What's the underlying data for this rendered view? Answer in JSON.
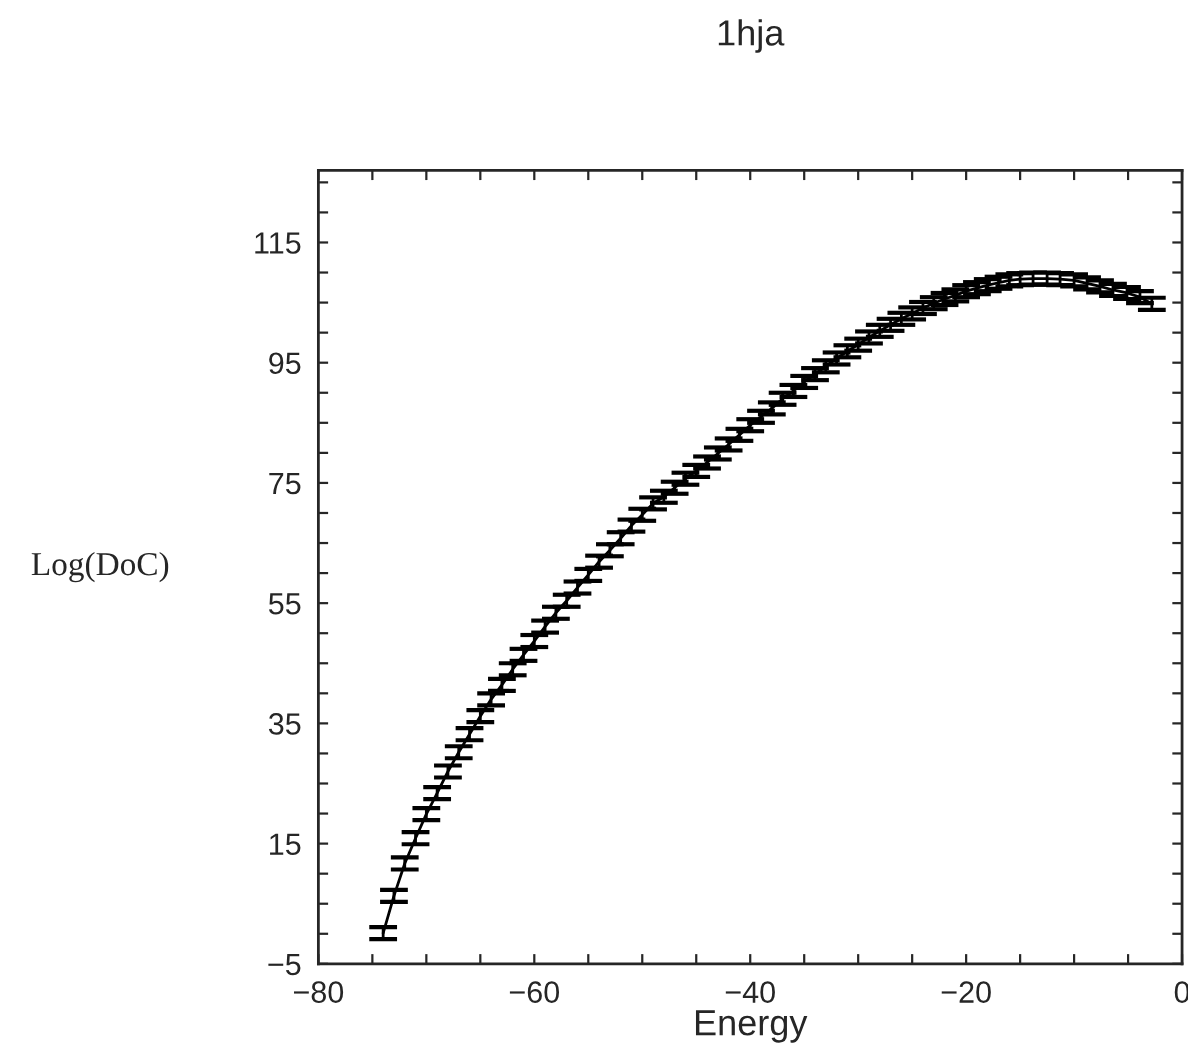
{
  "chart_data": {
    "type": "line",
    "title": "1hja",
    "xlabel": "Energy",
    "ylabel": "Log(DoC)",
    "x": [
      -74,
      -73,
      -72,
      -71,
      -70,
      -69,
      -68,
      -67,
      -66,
      -65,
      -64,
      -63,
      -62,
      -61,
      -60,
      -59,
      -58,
      -57,
      -56,
      -55,
      -54,
      -53,
      -52,
      -51,
      -50,
      -49,
      -48,
      -47,
      -46,
      -45,
      -44,
      -43,
      -42,
      -41,
      -40,
      -39,
      -38,
      -37,
      -36,
      -35,
      -34,
      -33,
      -32,
      -31,
      -30,
      -29,
      -28,
      -27,
      -26,
      -25,
      -24,
      -23,
      -22,
      -21,
      -20,
      -19,
      -18,
      -17,
      -16,
      -15,
      -13.8,
      -12.5,
      -11.3,
      -10,
      -8.8,
      -7.6,
      -6.4,
      -5.1,
      -3.9,
      -2.8
    ],
    "series": [
      {
        "color": "#000000",
        "values": [
          0.1,
          6.3,
          11.7,
          15.9,
          19.9,
          23.4,
          27,
          30.2,
          33.2,
          36.2,
          39,
          41.4,
          44,
          46.4,
          48.7,
          51.1,
          53.4,
          55.4,
          57.6,
          59.7,
          61.9,
          63.8,
          65.8,
          67.9,
          69.7,
          71.6,
          72.7,
          74.2,
          75.7,
          77,
          78.4,
          79.9,
          81.4,
          83,
          84.6,
          86,
          87.4,
          89,
          90.3,
          91.8,
          93.1,
          94.4,
          95.7,
          96.9,
          98,
          99.2,
          100.3,
          101.3,
          102.3,
          103.2,
          104.1,
          104.9,
          105.6,
          106.2,
          106.9,
          107.4,
          107.9,
          108.3,
          108.7,
          108.9,
          109,
          109,
          108.9,
          108.7,
          108.2,
          107.7,
          107.1,
          106.6,
          105.9,
          104.8
        ],
        "errors": [
          1,
          1,
          1,
          1,
          1,
          1,
          1,
          1,
          1,
          1,
          1,
          1,
          1,
          1,
          1,
          1,
          1,
          1,
          1,
          1,
          1,
          1,
          1,
          1,
          1,
          1,
          1,
          1,
          1,
          1,
          1,
          1,
          1,
          1,
          1,
          1,
          1,
          1,
          1,
          1,
          1,
          1,
          1,
          1,
          1,
          1,
          1,
          1,
          1,
          1,
          1,
          1,
          1,
          1,
          1,
          1,
          1,
          1,
          1,
          1,
          1,
          1,
          1,
          1,
          1,
          1,
          1,
          1,
          1,
          1
        ]
      }
    ],
    "xlim": [
      -80,
      0
    ],
    "xticks": [
      -80,
      {
        "value": -75,
        "label": null
      },
      -60,
      {
        "value": -55,
        "label": null
      },
      {
        "value": -50,
        "label": null
      },
      {
        "value": -45,
        "label": null
      },
      -40,
      {
        "value": -35,
        "label": null
      },
      {
        "value": -30,
        "label": null
      },
      {
        "value": -25,
        "label": null
      },
      -20,
      {
        "value": -15,
        "label": null
      },
      {
        "value": -10,
        "label": null
      },
      {
        "value": -5,
        "label": null
      },
      0,
      {
        "value": -70,
        "label": null
      },
      {
        "value": -65,
        "label": null
      }
    ],
    "ylim": [
      -5,
      127
    ],
    "yticks": [
      {
        "value": -5,
        "label": "−5"
      },
      {
        "value": 0,
        "label": null
      },
      {
        "value": 5,
        "label": null
      },
      {
        "value": 10,
        "label": null
      },
      15,
      {
        "value": 20,
        "label": null
      },
      {
        "value": 25,
        "label": null
      },
      {
        "value": 30,
        "label": null
      },
      35,
      {
        "value": 40,
        "label": null
      },
      {
        "value": 45,
        "label": null
      },
      {
        "value": 50,
        "label": null
      },
      55,
      {
        "value": 60,
        "label": null
      },
      {
        "value": 65,
        "label": null
      },
      {
        "value": 70,
        "label": null
      },
      75,
      {
        "value": 80,
        "label": null
      },
      {
        "value": 85,
        "label": null
      },
      {
        "value": 90,
        "label": null
      },
      95,
      {
        "value": 100,
        "label": null
      },
      {
        "value": 105,
        "label": null
      },
      {
        "value": 110,
        "label": null
      },
      115,
      {
        "value": 120,
        "label": null
      },
      {
        "value": 125,
        "label": null
      }
    ],
    "grid": false,
    "legend": false,
    "marker": "none",
    "line_style": "solid"
  }
}
